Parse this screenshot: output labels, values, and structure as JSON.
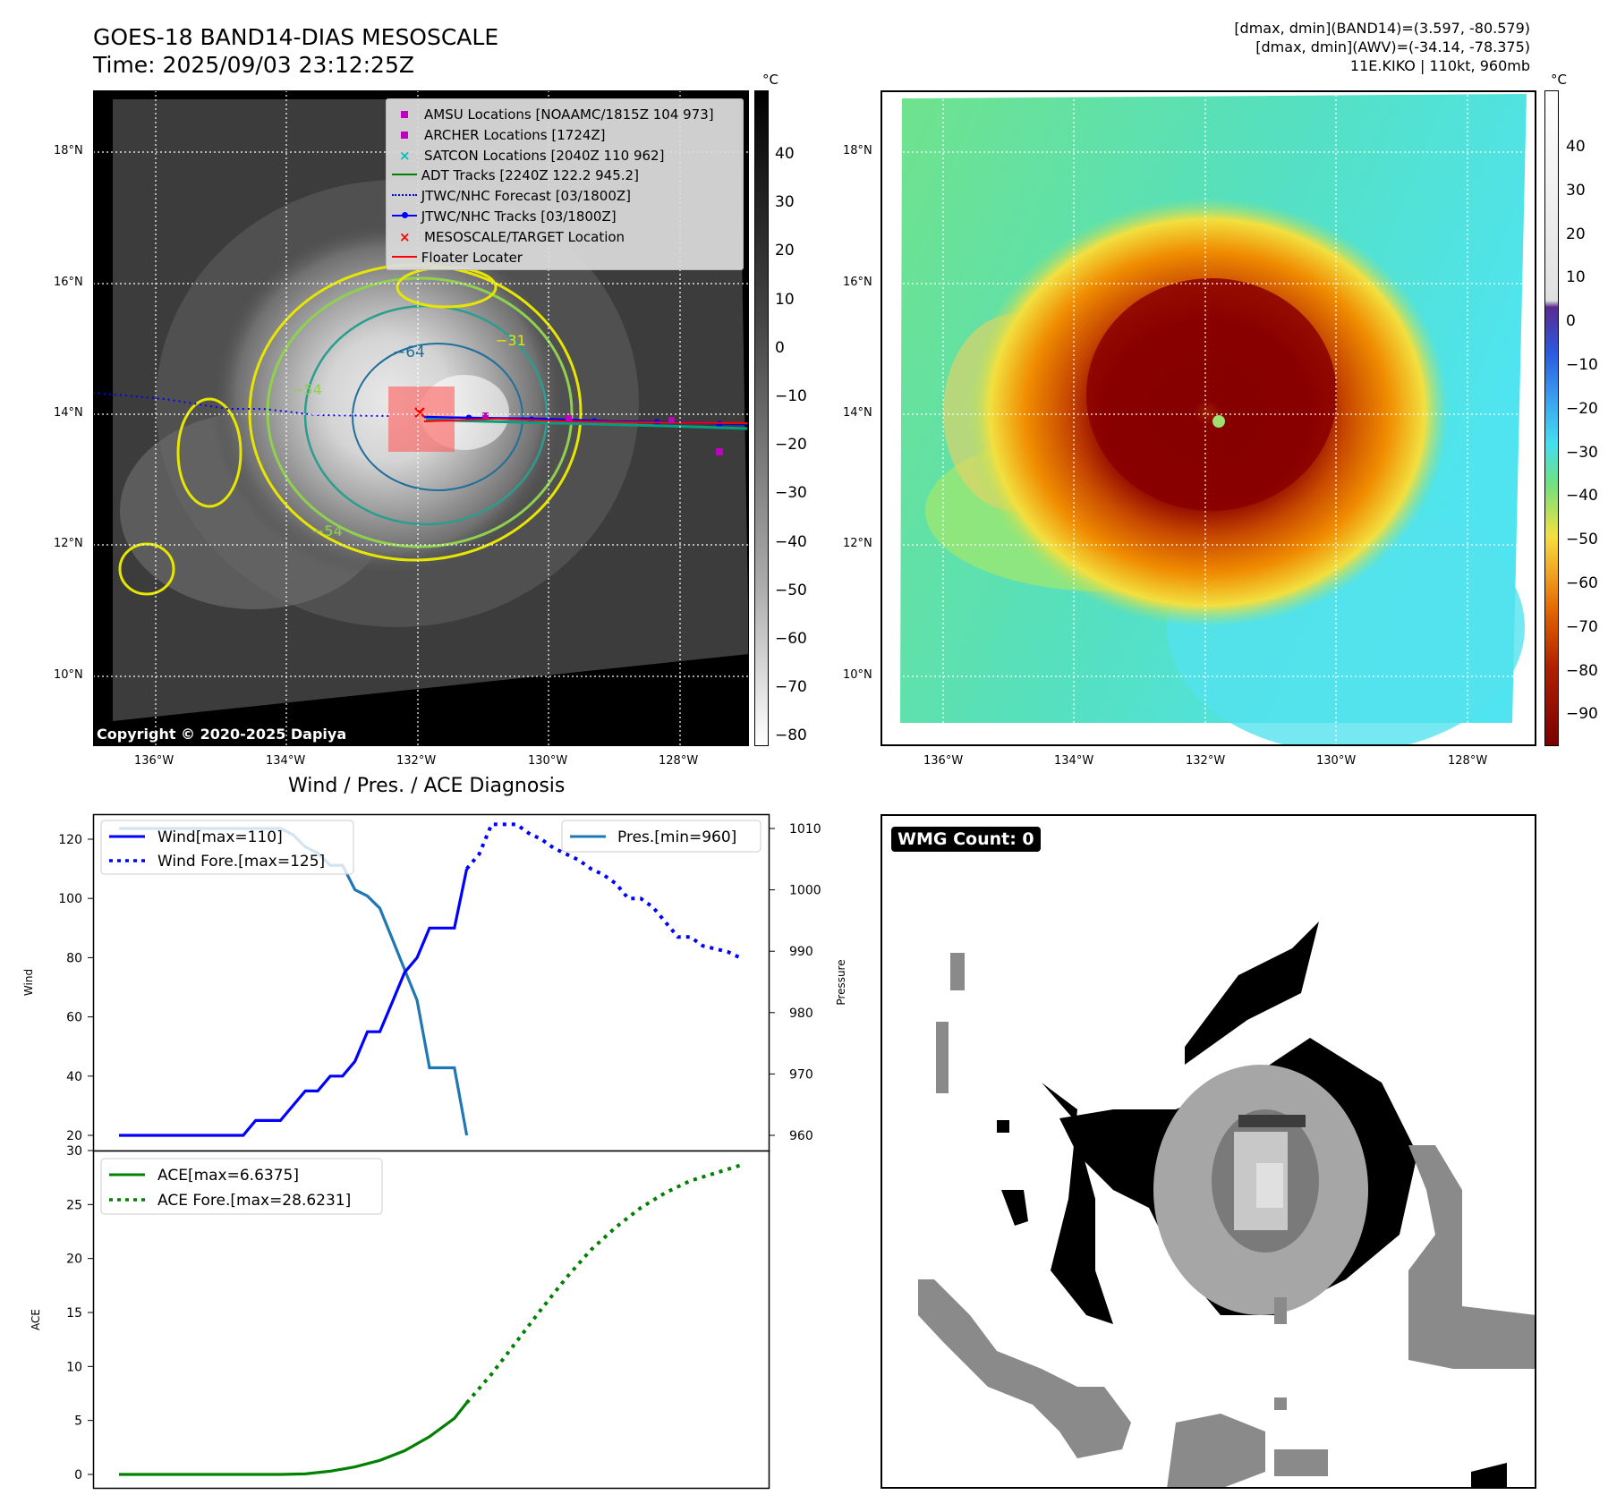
{
  "header": {
    "title_line1": "GOES-18 BAND14-DIAS MESOSCALE",
    "title_line2": "Time: 2025/09/03 23:12:25Z",
    "info_line1": "[dmax, dmin](BAND14)=(3.597, -80.579)",
    "info_line2": "[dmax, dmin](AWV)=(-34.14, -78.375)",
    "info_line3": "11E.KIKO | 110kt, 960mb"
  },
  "colorbar_unit": "°C",
  "copyright": "Copyright © 2020-2025 Dapiya",
  "map_axes": {
    "lat_ticks": [
      "18°N",
      "16°N",
      "14°N",
      "12°N",
      "10°N"
    ],
    "lon_ticks": [
      "136°W",
      "134°W",
      "132°W",
      "130°W",
      "128°W"
    ]
  },
  "left_colorbar_ticks": [
    "40",
    "30",
    "20",
    "10",
    "0",
    "−10",
    "−20",
    "−30",
    "−40",
    "−50",
    "−60",
    "−70",
    "−80"
  ],
  "right_colorbar_ticks": [
    "40",
    "30",
    "20",
    "10",
    "0",
    "−10",
    "−20",
    "−30",
    "−40",
    "−50",
    "−60",
    "−70",
    "−80",
    "−90"
  ],
  "contour_labels": [
    "−64",
    "−31",
    "−54",
    "−54"
  ],
  "legend": [
    {
      "label": "AMSU Locations [NOAAMC/1815Z 104 973]",
      "marker": "square",
      "color": "#bf00bf"
    },
    {
      "label": "ARCHER Locations [1724Z]",
      "marker": "square",
      "color": "#bf00bf"
    },
    {
      "label": "SATCON Locations [2040Z 110 962]",
      "marker": "x",
      "color": "#00bfbf"
    },
    {
      "label": "ADT Tracks [2240Z 122.2 945.2]",
      "marker": "line",
      "color": "#008000"
    },
    {
      "label": "JTWC/NHC Forecast [03/1800Z]",
      "marker": "dotted",
      "color": "#0000ff"
    },
    {
      "label": "JTWC/NHC Tracks [03/1800Z]",
      "marker": "line-dot",
      "color": "#0000ff"
    },
    {
      "label": "MESOSCALE/TARGET Location",
      "marker": "x",
      "color": "#ff0000"
    },
    {
      "label": "Floater Locater",
      "marker": "line",
      "color": "#ff0000"
    }
  ],
  "diagnosis": {
    "title": "Wind / Pres. / ACE Diagnosis",
    "wind_ylabel": "Wind",
    "pres_ylabel": "Pressure",
    "ace_ylabel": "ACE",
    "wind_legend": "Wind[max=110]",
    "wind_fore_legend": "Wind Fore.[max=125]",
    "pres_legend": "Pres.[min=960]",
    "ace_legend": "ACE[max=6.6375]",
    "ace_fore_legend": "ACE Fore.[max=28.6231]"
  },
  "wmg_label": "WMG Count: 0",
  "chart_data": [
    {
      "type": "line",
      "name": "wind-pressure",
      "x": [
        0,
        1,
        2,
        3,
        4,
        5,
        6,
        7,
        8,
        9,
        10,
        11,
        12,
        13,
        14,
        15,
        16,
        17,
        18,
        19,
        20,
        21,
        22,
        23,
        24,
        25,
        26,
        27,
        28
      ],
      "series": [
        {
          "name": "Wind[max=110]",
          "axis": "left",
          "values": [
            20,
            20,
            20,
            20,
            20,
            20,
            20,
            20,
            20,
            20,
            20,
            25,
            25,
            25,
            30,
            35,
            35,
            40,
            40,
            45,
            55,
            55,
            65,
            75,
            80,
            90,
            90,
            90,
            110
          ]
        },
        {
          "name": "Wind Fore.[max=125]",
          "axis": "left",
          "x": [
            28,
            29,
            30,
            31,
            32,
            33,
            34,
            35,
            36,
            37,
            38,
            39,
            40,
            41,
            42,
            43,
            44,
            45,
            46,
            47,
            48,
            49,
            50
          ],
          "values": [
            110,
            115,
            125,
            125,
            125,
            122,
            120,
            117,
            115,
            113,
            110,
            108,
            105,
            100,
            100,
            97,
            92,
            87,
            87,
            84,
            83,
            82,
            80
          ]
        },
        {
          "name": "Pres.[min=960]",
          "axis": "right",
          "values": [
            1010,
            1010,
            1010,
            1010,
            1010,
            1010,
            1010,
            1010,
            1010,
            1010,
            1010,
            1010,
            1010,
            1010,
            1009,
            1007,
            1006,
            1004,
            1004,
            1000,
            999,
            997,
            992,
            987,
            982,
            971,
            971,
            971,
            960
          ]
        }
      ],
      "ylim_left": [
        20,
        130
      ],
      "ylim_right": [
        958.5,
        1012
      ],
      "yticks_left": [
        "20",
        "40",
        "60",
        "80",
        "100",
        "120"
      ],
      "yticks_right": [
        "960",
        "970",
        "980",
        "990",
        "1000",
        "1010"
      ]
    },
    {
      "type": "line",
      "name": "ace",
      "series": [
        {
          "name": "ACE[max=6.6375]",
          "x": [
            0,
            5,
            10,
            13,
            15,
            17,
            19,
            21,
            23,
            25,
            27,
            28
          ],
          "values": [
            0,
            0,
            0,
            0,
            0.05,
            0.3,
            0.7,
            1.3,
            2.2,
            3.5,
            5.2,
            6.6375
          ]
        },
        {
          "name": "ACE Fore.[max=28.6231]",
          "x": [
            28,
            30,
            32,
            34,
            36,
            38,
            40,
            42,
            44,
            46,
            48,
            50
          ],
          "values": [
            6.6375,
            9.3,
            12.3,
            15.3,
            18.2,
            20.8,
            22.9,
            24.7,
            26.1,
            27.2,
            27.9,
            28.6231
          ]
        }
      ],
      "ylim": [
        -1.2,
        30
      ],
      "yticks": [
        "0",
        "5",
        "10",
        "15",
        "20",
        "25",
        "30"
      ]
    }
  ]
}
